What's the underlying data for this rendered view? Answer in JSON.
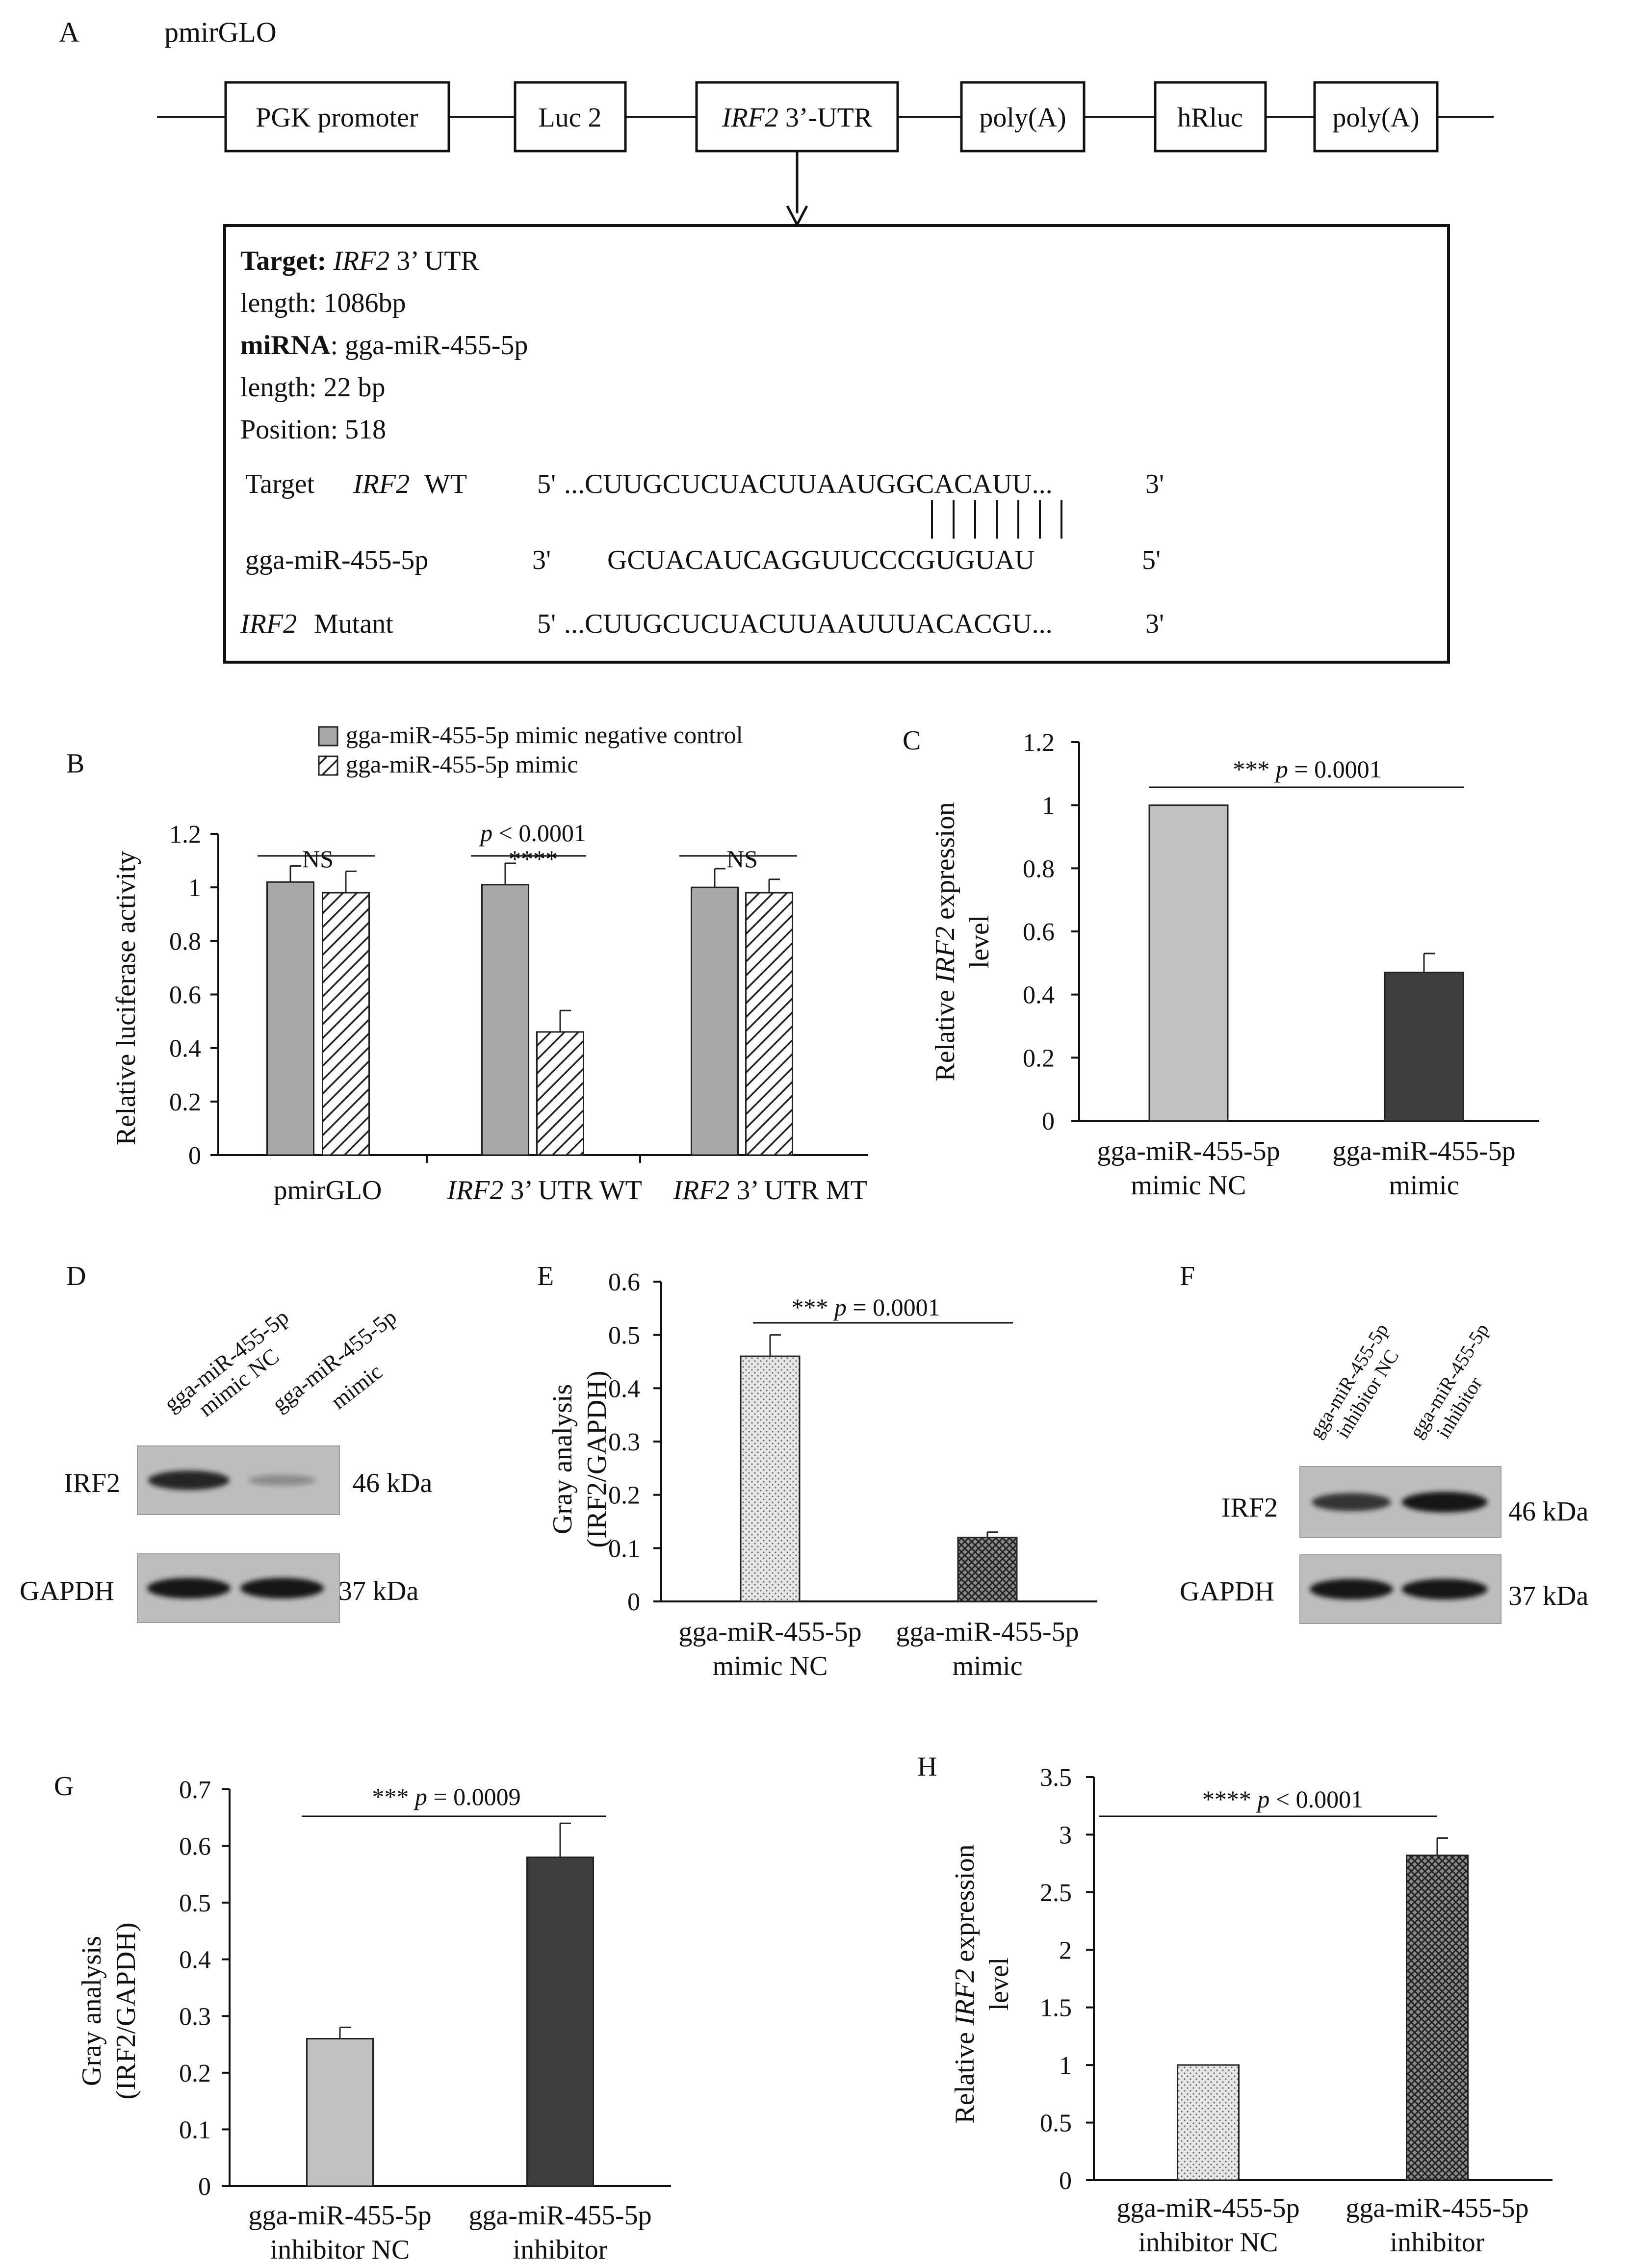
{
  "panel_a": {
    "panel_label": "A",
    "vector_name": "pmirGLO",
    "elements": [
      "PGK promoter",
      "Luc 2",
      "IRF2",
      "3’-UTR",
      "poly(A)",
      "hRluc",
      "poly(A)"
    ],
    "target_label": "Target:",
    "target_gene": "IRF2",
    "target_utr": "3’ UTR",
    "target_length": "length: 1086bp",
    "mirna_label": "miRNA",
    "mirna_name": ": gga-miR-455-5p",
    "mirna_length": "length: 22 bp",
    "position": "Position: 518",
    "row1": {
      "prefix": "Target",
      "gene": "IRF2",
      "suffix": "WT",
      "end5": "5'",
      "seq": "...CUUGCUCUACUUAAUGGCACAUU...",
      "end3": "3'"
    },
    "row2": {
      "name": "gga-miR-455-5p",
      "end3": "3'",
      "seq": "GCUACAUCAGGUUCCCGUGUAU",
      "end5": "5'"
    },
    "row3": {
      "gene": "IRF2",
      "suffix": "Mutant",
      "end5": "5'",
      "seq": "...CUUGCUCUACUUAAUUUACACGU...",
      "end3": "3'"
    }
  },
  "panel_d": {
    "panel_label": "D",
    "lanes": [
      "gga-miR-455-5p",
      "mimic NC",
      "gga-miR-455-5p",
      "mimic"
    ],
    "bands": [
      "IRF2",
      "GAPDH"
    ],
    "sizes": [
      "46 kDa",
      "37 kDa"
    ],
    "irf2_intensity": [
      0.9,
      0.2
    ],
    "gapdh_intensity": [
      1.0,
      1.0
    ]
  },
  "panel_f": {
    "panel_label": "F",
    "lanes": [
      "gga-miR-455-5p",
      "inhibitor NC",
      "gga-miR-455-5p",
      "inhibitor"
    ],
    "bands": [
      "IRF2",
      "GAPDH"
    ],
    "sizes": [
      "46 kDa",
      "37 kDa"
    ],
    "irf2_intensity": [
      0.8,
      1.0
    ],
    "gapdh_intensity": [
      1.0,
      1.0
    ]
  },
  "chart_data": [
    {
      "id": "B",
      "type": "bar",
      "panel_label": "B",
      "categories": [
        "pmirGLO",
        "IRF2 3’ UTR WT",
        "IRF2 3’ UTR MT"
      ],
      "category_parts": [
        [
          "",
          "pmirGLO"
        ],
        [
          "IRF2",
          " 3’ UTR WT"
        ],
        [
          "IRF2",
          " 3’ UTR MT"
        ]
      ],
      "series": [
        {
          "name": "gga-miR-455-5p mimic negative control",
          "values": [
            1.02,
            1.01,
            1.0
          ],
          "errors": [
            0.06,
            0.08,
            0.07
          ]
        },
        {
          "name": "gga-miR-455-5p mimic",
          "values": [
            0.98,
            0.46,
            0.98
          ],
          "errors": [
            0.08,
            0.08,
            0.05
          ]
        }
      ],
      "ylabel": "Relative luciferase activity",
      "ylim": [
        0,
        1.2
      ],
      "yticks": [
        "0",
        "0.2",
        "0.4",
        "0.6",
        "0.8",
        "1",
        "1.2"
      ],
      "annotations": [
        "NS",
        "p < 0.0001",
        "****",
        "NS"
      ],
      "annotation_parts": {
        "p_italic": "p",
        "p_rest": " < 0.0001"
      }
    },
    {
      "id": "C",
      "type": "bar",
      "panel_label": "C",
      "categories": [
        "gga-miR-455-5p mimic NC",
        "gga-miR-455-5p mimic"
      ],
      "category_lines": [
        [
          "gga-miR-455-5p",
          "mimic NC"
        ],
        [
          "gga-miR-455-5p",
          "mimic"
        ]
      ],
      "values": [
        1.0,
        0.47
      ],
      "errors": [
        0.0,
        0.06
      ],
      "ylabel": "Relative IRF2 expression level",
      "ylabel_parts": [
        "Relative ",
        "IRF2",
        " expression",
        "level"
      ],
      "ylim": [
        0,
        1.2
      ],
      "yticks": [
        "0",
        "0.2",
        "0.4",
        "0.6",
        "0.8",
        "1",
        "1.2"
      ],
      "annotation": "*** p = 0.0001",
      "annotation_parts": [
        "*** ",
        "p",
        " = 0.0001"
      ]
    },
    {
      "id": "E",
      "type": "bar",
      "panel_label": "E",
      "categories": [
        "gga-miR-455-5p mimic NC",
        "gga-miR-455-5p mimic"
      ],
      "category_lines": [
        [
          "gga-miR-455-5p",
          "mimic NC"
        ],
        [
          "gga-miR-455-5p",
          "mimic"
        ]
      ],
      "values": [
        0.46,
        0.12
      ],
      "errors": [
        0.04,
        0.01
      ],
      "ylabel": "Gray analysis (IRF2/GAPDH)",
      "ylabel_lines": [
        "Gray analysis",
        "(IRF2/GAPDH)"
      ],
      "ylim": [
        0,
        0.6
      ],
      "yticks": [
        "0",
        "0.1",
        "0.2",
        "0.3",
        "0.4",
        "0.5",
        "0.6"
      ],
      "annotation": "*** p = 0.0001",
      "annotation_parts": [
        "*** ",
        "p",
        " = 0.0001"
      ]
    },
    {
      "id": "G",
      "type": "bar",
      "panel_label": "G",
      "categories": [
        "gga-miR-455-5p inhibitor NC",
        "gga-miR-455-5p inhibitor"
      ],
      "category_lines": [
        [
          "gga-miR-455-5p",
          "inhibitor NC"
        ],
        [
          "gga-miR-455-5p",
          "inhibitor"
        ]
      ],
      "values": [
        0.26,
        0.58
      ],
      "errors": [
        0.02,
        0.06
      ],
      "ylabel": "Gray analysis (IRF2/GAPDH)",
      "ylabel_lines": [
        "Gray analysis",
        "(IRF2/GAPDH)"
      ],
      "ylim": [
        0,
        0.7
      ],
      "yticks": [
        "0",
        "0.1",
        "0.2",
        "0.3",
        "0.4",
        "0.5",
        "0.6",
        "0.7"
      ],
      "annotation": "*** p = 0.0009",
      "annotation_parts": [
        "*** ",
        "p",
        " = 0.0009"
      ]
    },
    {
      "id": "H",
      "type": "bar",
      "panel_label": "H",
      "categories": [
        "gga-miR-455-5p inhibitor NC",
        "gga-miR-455-5p inhibitor"
      ],
      "category_lines": [
        [
          "gga-miR-455-5p",
          "inhibitor NC"
        ],
        [
          "gga-miR-455-5p",
          "inhibitor"
        ]
      ],
      "values": [
        1.0,
        2.82
      ],
      "errors": [
        0.0,
        0.15
      ],
      "ylabel": "Relative IRF2 expression level",
      "ylabel_parts": [
        "Relative ",
        "IRF2",
        " expression",
        "level"
      ],
      "ylim": [
        0,
        3.5
      ],
      "yticks": [
        "0",
        "0.5",
        "1",
        "1.5",
        "2",
        "2.5",
        "3",
        "3.5"
      ],
      "annotation": "**** p < 0.0001",
      "annotation_parts": [
        "**** ",
        "p",
        " < 0.0001"
      ]
    }
  ]
}
